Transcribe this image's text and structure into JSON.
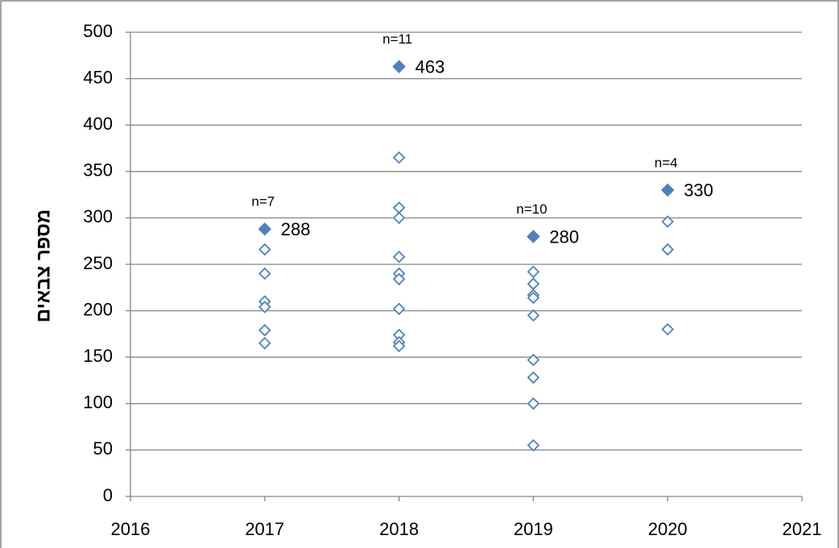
{
  "chart_data": {
    "type": "scatter",
    "ylabel": "מספר צבאים",
    "xlim": [
      2016,
      2021
    ],
    "xticks": [
      2016,
      2017,
      2018,
      2019,
      2020,
      2021
    ],
    "ylim": [
      0,
      500
    ],
    "yticks": [
      0,
      50,
      100,
      150,
      200,
      250,
      300,
      350,
      400,
      450,
      500
    ],
    "grid": true,
    "series": [
      {
        "color": "#4f81bd",
        "marker": "diamond-open",
        "x": [
          2017,
          2017,
          2017,
          2017,
          2017,
          2017,
          2018,
          2018,
          2018,
          2018,
          2018,
          2018,
          2018,
          2018,
          2018,
          2018,
          2019,
          2019,
          2019,
          2019,
          2019,
          2019,
          2019,
          2019,
          2019,
          2020,
          2020,
          2020
        ],
        "values": [
          266,
          240,
          210,
          204,
          179,
          165,
          365,
          311,
          300,
          258,
          240,
          234,
          202,
          174,
          166,
          162,
          242,
          229,
          217,
          214,
          195,
          147,
          128,
          100,
          55,
          296,
          266,
          180
        ]
      },
      {
        "color": "#4f81bd",
        "marker": "diamond-filled",
        "data_labels": true,
        "x": [
          2017,
          2018,
          2019,
          2020
        ],
        "values": [
          288,
          463,
          280,
          330
        ]
      }
    ],
    "annotations": [
      "n=7",
      "n=11",
      "n=10",
      "n=4"
    ]
  }
}
